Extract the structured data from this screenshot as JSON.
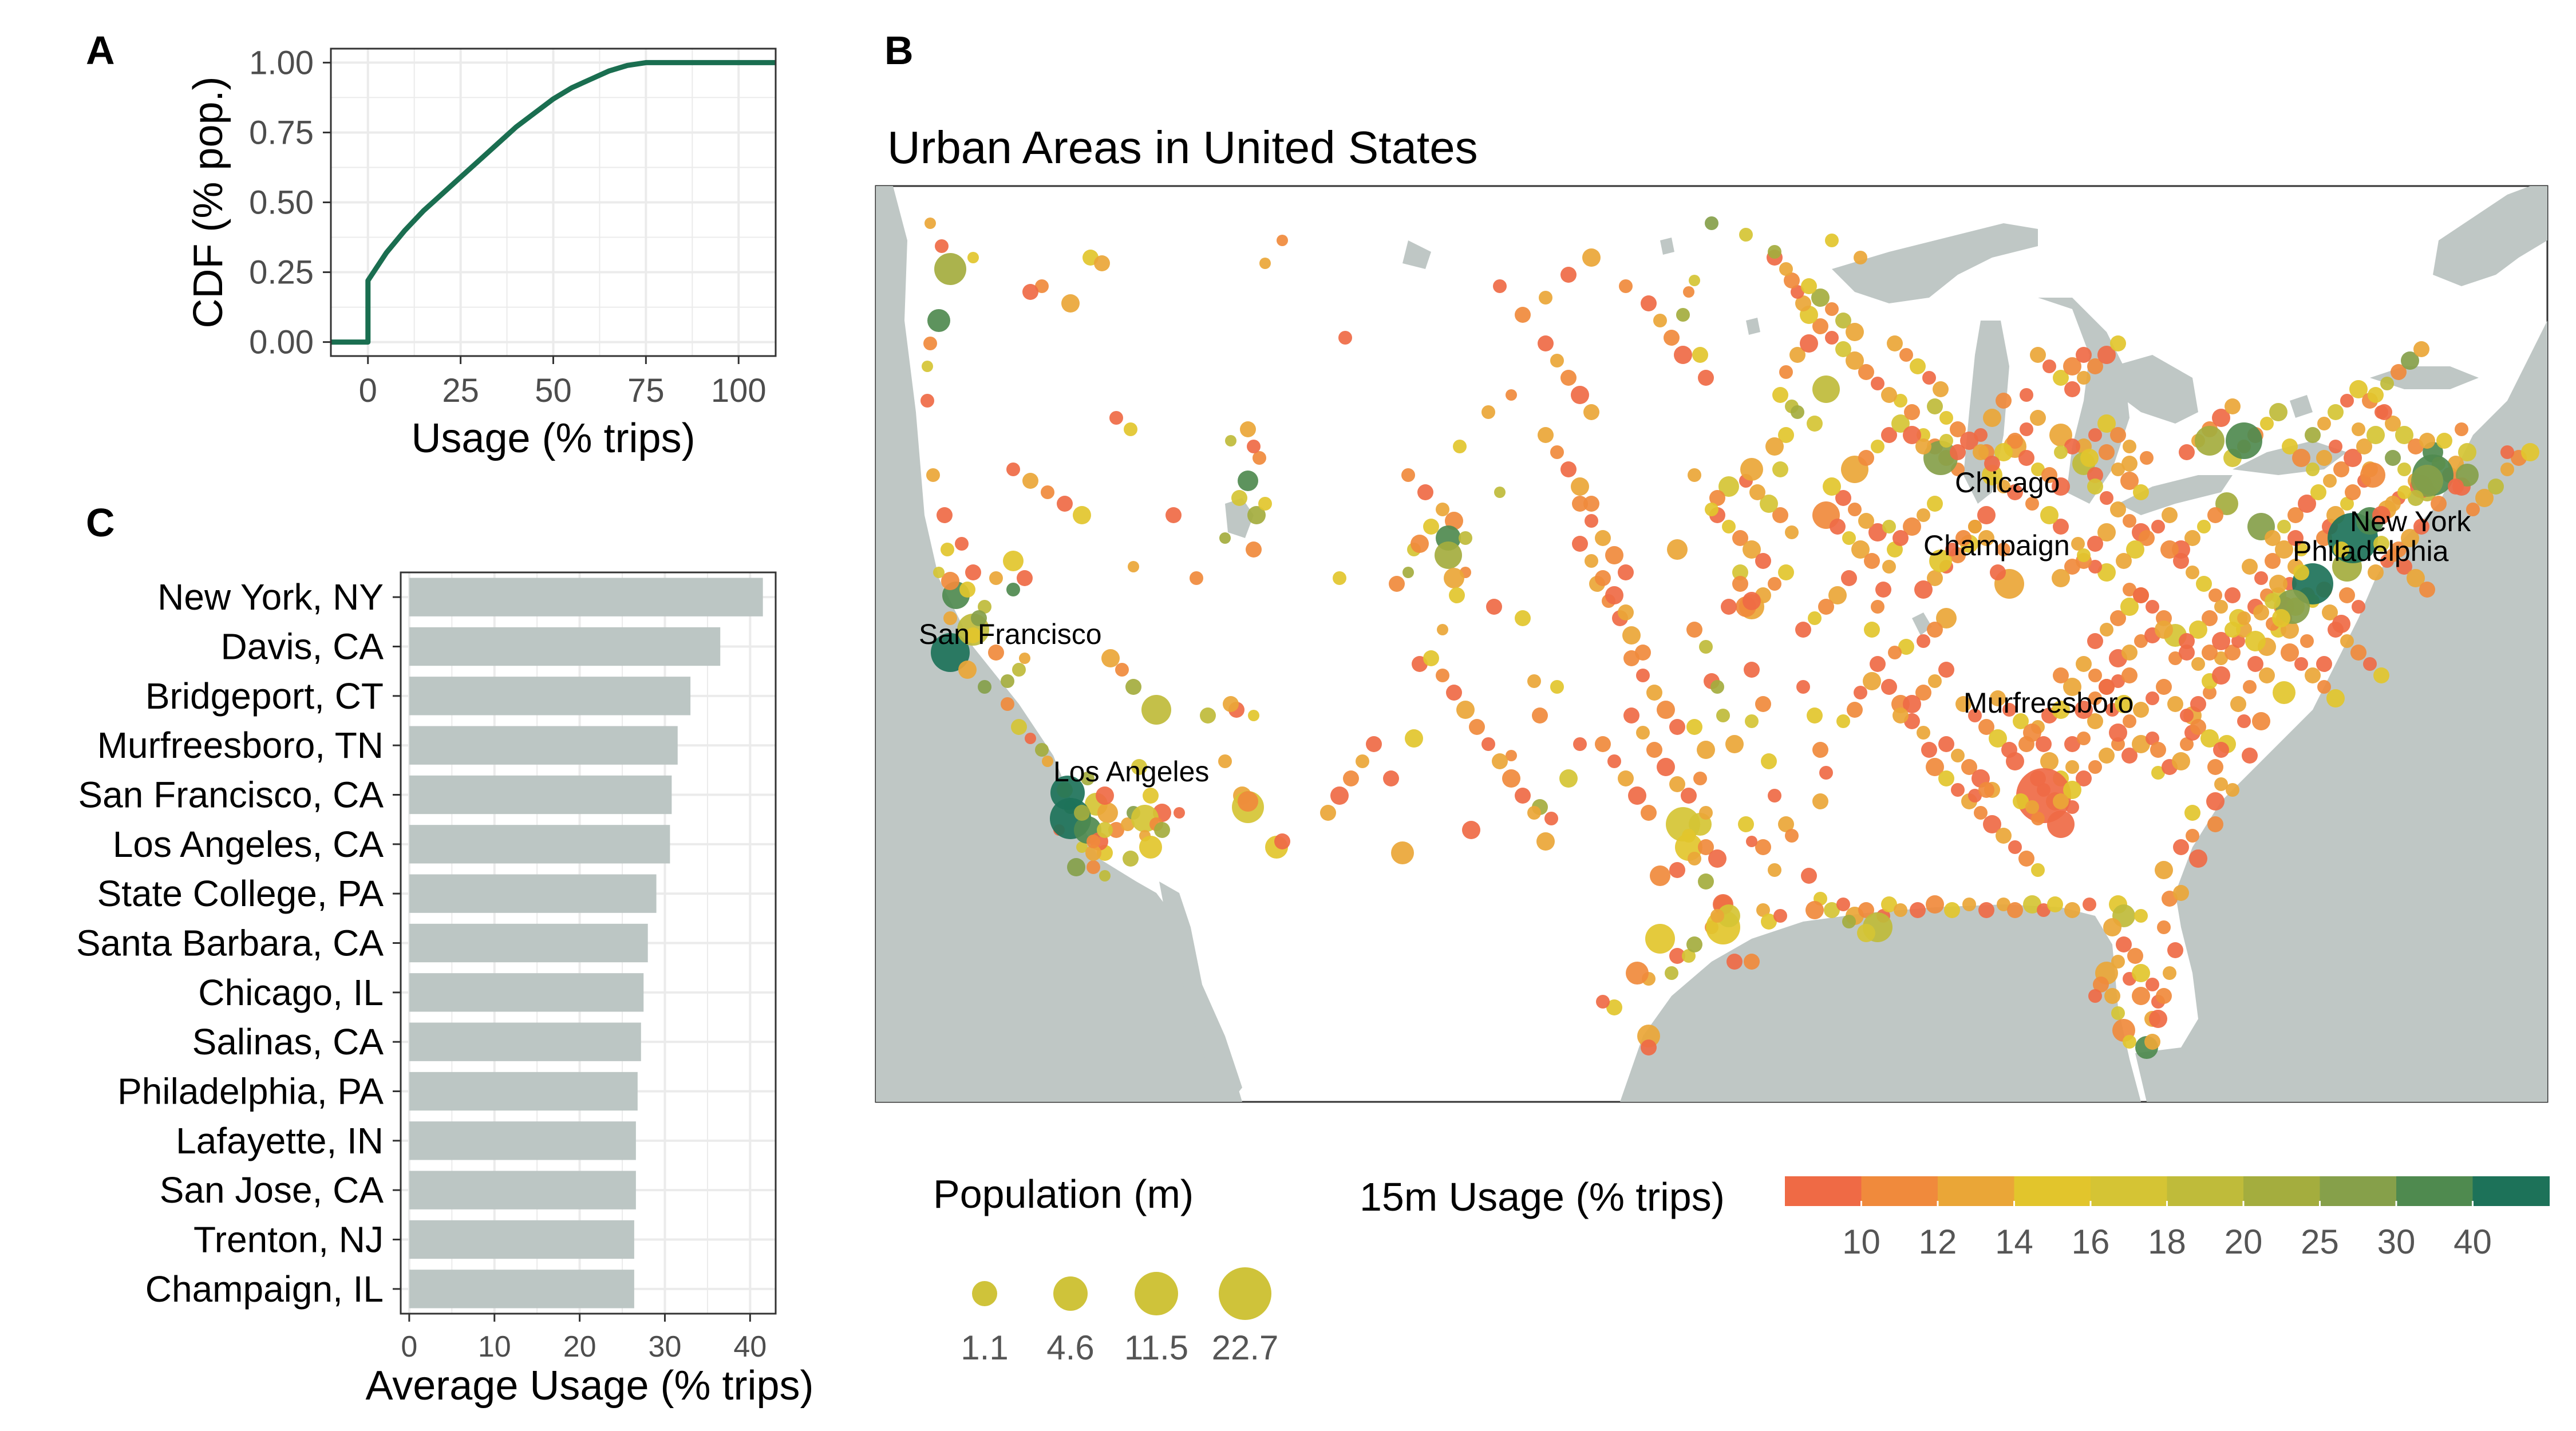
{
  "panels": {
    "a": {
      "letter": "A"
    },
    "b": {
      "letter": "B"
    },
    "c": {
      "letter": "C"
    }
  },
  "colors": {
    "cdf_line": "#1a6e50",
    "bar_fill": "#bcc6c4",
    "water": "#bfc7c5",
    "grid": "#ebebeb",
    "usage_scale": [
      "#ef6a45",
      "#f08a3c",
      "#eaa637",
      "#e2c52c",
      "#d5c434",
      "#bfbb3a",
      "#a4ad3e",
      "#86a04a",
      "#4f8a4f",
      "#1d7259"
    ]
  },
  "chart_data": [
    {
      "id": "A",
      "type": "line",
      "title": "",
      "xlabel": "Usage (% trips)",
      "ylabel": "CDF (% pop.)",
      "xlim": [
        -10,
        110
      ],
      "ylim": [
        -0.05,
        1.05
      ],
      "xticks": [
        0,
        25,
        50,
        75,
        100
      ],
      "yticks": [
        "0.00",
        "0.25",
        "0.50",
        "0.75",
        "1.00"
      ],
      "x": [
        -10,
        0,
        0,
        5,
        10,
        15,
        20,
        25,
        30,
        35,
        40,
        45,
        50,
        55,
        60,
        65,
        70,
        75,
        80,
        85,
        90,
        95,
        100,
        105,
        110
      ],
      "y": [
        0,
        0,
        0.22,
        0.32,
        0.4,
        0.47,
        0.53,
        0.59,
        0.65,
        0.71,
        0.77,
        0.82,
        0.87,
        0.91,
        0.94,
        0.97,
        0.99,
        1,
        1,
        1,
        1,
        1,
        1,
        1,
        1
      ]
    },
    {
      "id": "B",
      "type": "scatter",
      "title": "Urban Areas in United States",
      "labels": [
        "Chicago",
        "Champaign",
        "New York",
        "Philadelphia",
        "San Francisco",
        "Los Angeles",
        "Murfreesboro"
      ],
      "size_legend": {
        "title": "Population (m)",
        "values": [
          1.1,
          4.6,
          11.5,
          22.7
        ]
      },
      "color_legend": {
        "title": "15m Usage (% trips)",
        "ticks": [
          10,
          12,
          14,
          16,
          18,
          20,
          25,
          30,
          40
        ]
      }
    },
    {
      "id": "C",
      "type": "bar",
      "orientation": "horizontal",
      "xlabel": "Average Usage (% trips)",
      "xlim": [
        -1,
        43
      ],
      "xticks": [
        0,
        10,
        20,
        30,
        40
      ],
      "categories": [
        "New York, NY",
        "Davis, CA",
        "Bridgeport, CT",
        "Murfreesboro, TN",
        "San Francisco, CA",
        "Los Angeles, CA",
        "State College, PA",
        "Santa Barbara, CA",
        "Chicago, IL",
        "Salinas, CA",
        "Philadelphia, PA",
        "Lafayette, IN",
        "San Jose, CA",
        "Trenton, NJ",
        "Champaign, IL"
      ],
      "values": [
        41.5,
        36.5,
        33,
        31.5,
        30.8,
        30.6,
        29,
        28,
        27.5,
        27.2,
        26.8,
        26.6,
        26.6,
        26.4,
        26.4
      ]
    }
  ]
}
